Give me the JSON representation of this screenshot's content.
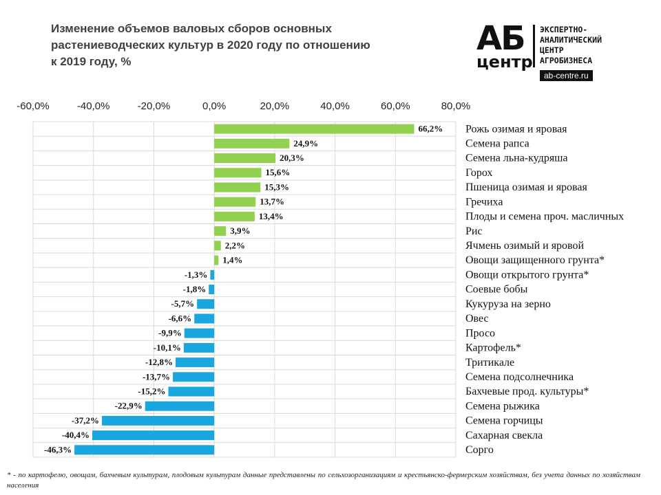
{
  "chart_data": {
    "type": "barh",
    "title": "Изменение объемов валовых сборов основных растениеводческих культур в 2020 году по отношению к 2019 году, %",
    "categories": [
      "Рожь озимая и яровая",
      "Семена рапса",
      "Семена льна-кудряша",
      "Горох",
      "Пшеница озимая и яровая",
      "Гречиха",
      "Плоды и семена проч. масличных",
      "Рис",
      "Ячмень озимый и яровой",
      "Овощи защищенного грунта*",
      "Овощи открытого грунта*",
      "Соевые бобы",
      "Кукуруза на зерно",
      "Овес",
      "Просо",
      "Картофель*",
      "Тритикале",
      "Семена подсолнечника",
      "Бахчевые прод. культуры*",
      "Семена рыжика",
      "Семена горчицы",
      "Сахарная свекла",
      "Сорго"
    ],
    "values": [
      66.2,
      24.9,
      20.3,
      15.6,
      15.3,
      13.7,
      13.4,
      3.9,
      2.2,
      1.4,
      -1.3,
      -1.8,
      -5.7,
      -6.6,
      -9.9,
      -10.1,
      -12.8,
      -13.7,
      -15.2,
      -22.9,
      -37.2,
      -40.4,
      -46.3
    ],
    "value_labels": [
      "66,2%",
      "24,9%",
      "20,3%",
      "15,6%",
      "15,3%",
      "13,7%",
      "13,4%",
      "3,9%",
      "2,2%",
      "1,4%",
      "-1,3%",
      "-1,8%",
      "-5,7%",
      "-6,6%",
      "-9,9%",
      "-10,1%",
      "-12,8%",
      "-13,7%",
      "-15,2%",
      "-22,9%",
      "-37,2%",
      "-40,4%",
      "-46,3%"
    ],
    "positive_color": "#92d050",
    "negative_color": "#1aa7e0",
    "xlim": [
      -60,
      80
    ],
    "xticks": [
      {
        "value": -60,
        "label": "-60,0%"
      },
      {
        "value": -40,
        "label": "-40,0%"
      },
      {
        "value": -20,
        "label": "-20,0%"
      },
      {
        "value": 0,
        "label": "0,0%"
      },
      {
        "value": 20,
        "label": "20,0%"
      },
      {
        "value": 40,
        "label": "40,0%"
      },
      {
        "value": 60,
        "label": "60,0%"
      },
      {
        "value": 80,
        "label": "80,0%"
      }
    ],
    "grid": true,
    "footnote": "* - по картофелю, овощам, бахчевым культурам, плодовым культурам данные представлены по сельхозорганизациям и крестьянско-фермерским хозяйствам, без учета данных по хозяйствам населения"
  },
  "logo": {
    "mark": "АБ",
    "sub": "центр",
    "lines": [
      "ЭКСПЕРТНО-",
      "АНАЛИТИЧЕСКИЙ",
      "ЦЕНТР",
      "АГРОБИЗНЕСА"
    ],
    "url": "ab-centre.ru"
  }
}
